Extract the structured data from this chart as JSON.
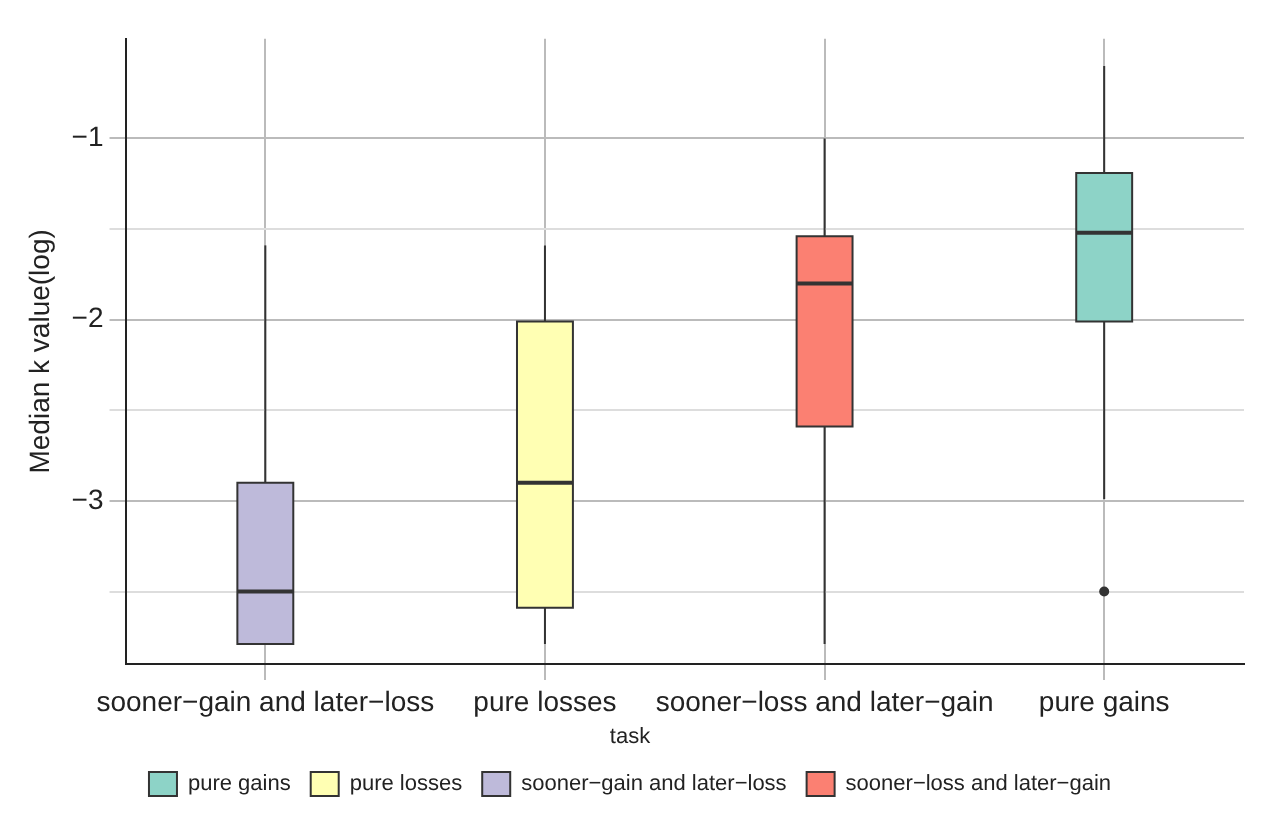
{
  "chart_data": {
    "type": "box",
    "ylabel": "Median k value(log)",
    "legend_title": "task",
    "categories": [
      "sooner−gain and later−loss",
      "pure losses",
      "sooner−loss and later−gain",
      "pure gains"
    ],
    "ylim": [
      -3.9,
      -0.45
    ],
    "yticks": [
      {
        "value": -3.5,
        "label": null
      },
      -3,
      {
        "value": -2.5,
        "label": null
      },
      -2,
      {
        "value": -1.5,
        "label": null
      },
      -1
    ],
    "grid": true,
    "legend": "bottom",
    "series": [
      {
        "name": "pure gains",
        "color": "#8dd3c7",
        "boxes": [
          null,
          null,
          null,
          {
            "low": -2.99,
            "q1": -2.01,
            "median": -1.52,
            "q3": -1.19,
            "high": -0.6,
            "outliers": [
              -3.5
            ]
          }
        ]
      },
      {
        "name": "pure losses",
        "color": "#ffffb3",
        "boxes": [
          null,
          {
            "low": -3.79,
            "q1": -3.59,
            "median": -2.9,
            "q3": -2.01,
            "high": -1.59
          },
          null,
          null
        ]
      },
      {
        "name": "sooner−gain and later−loss",
        "color": "#bebada",
        "boxes": [
          {
            "low": -3.79,
            "q1": -3.79,
            "median": -3.5,
            "q3": -2.9,
            "high": -1.59
          },
          null,
          null,
          null
        ]
      },
      {
        "name": "sooner−loss and later−gain",
        "color": "#fb8072",
        "boxes": [
          null,
          null,
          {
            "low": -3.79,
            "q1": -2.59,
            "median": -1.8,
            "q3": -1.54,
            "high": -1.0
          },
          null
        ]
      }
    ]
  }
}
